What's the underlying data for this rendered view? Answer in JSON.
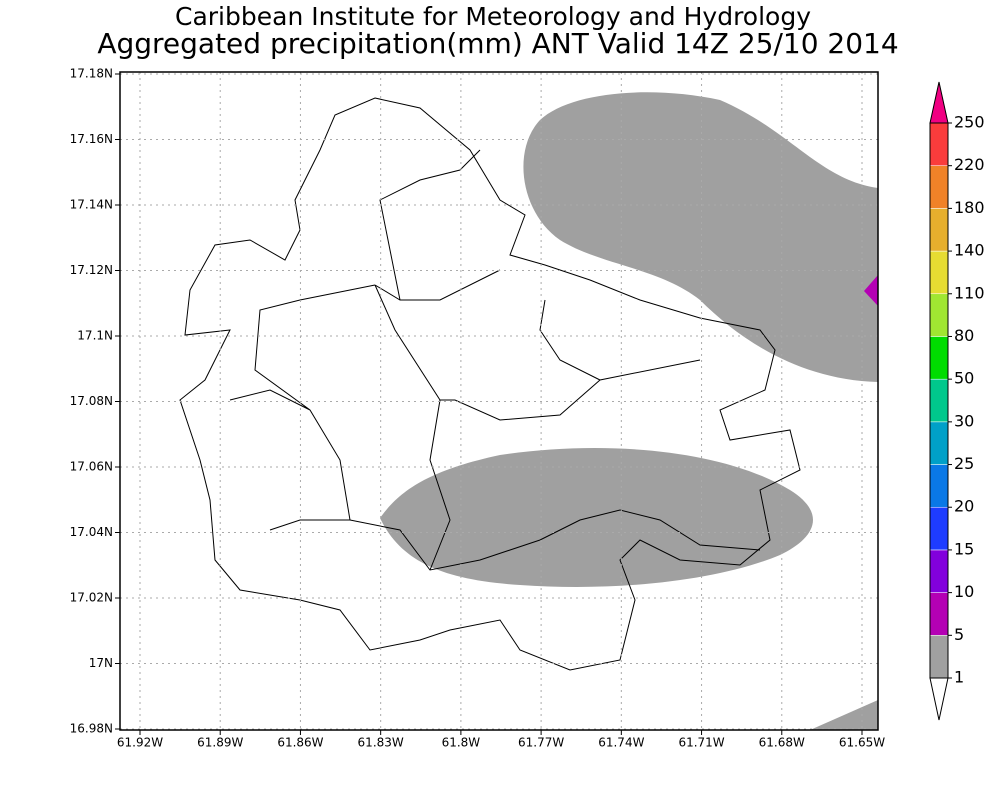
{
  "title": [
    "Caribbean Institute for Meteorology and Hydrology",
    "Aggregated precipitation(mm) ANT Valid 14Z 25/10 2014"
  ],
  "map": {
    "xticks": [
      "61.92W",
      "61.89W",
      "61.86W",
      "61.83W",
      "61.8W",
      "61.77W",
      "61.74W",
      "61.71W",
      "61.68W",
      "61.65W"
    ],
    "yticks": [
      "17.18N",
      "17.16N",
      "17.14N",
      "17.12N",
      "17.1N",
      "17.08N",
      "17.06N",
      "17.04N",
      "17.02N",
      "17N",
      "16.98N"
    ]
  },
  "legend": {
    "levels": [
      1,
      5,
      10,
      15,
      20,
      25,
      30,
      50,
      80,
      110,
      140,
      180,
      220,
      250
    ],
    "colors": [
      "#a0a0a0",
      "#b400b4",
      "#8200dc",
      "#1e3cff",
      "#0a78e6",
      "#00a0c8",
      "#00c88c",
      "#00dc00",
      "#a0e632",
      "#e6dc32",
      "#e6af2d",
      "#f08228",
      "#fa3c3c"
    ],
    "over_color": "#f00082",
    "under_color": "#ffffff"
  }
}
